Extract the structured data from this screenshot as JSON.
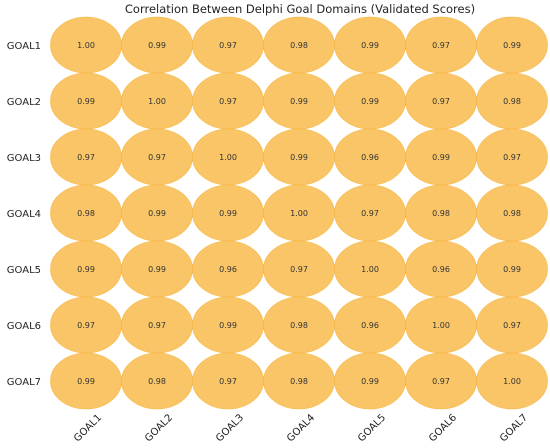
{
  "chart_data": {
    "type": "heatmap",
    "title": "Correlation Between Delphi Goal Domains (Validated Scores)",
    "rows": [
      "GOAL1",
      "GOAL2",
      "GOAL3",
      "GOAL4",
      "GOAL5",
      "GOAL6",
      "GOAL7"
    ],
    "cols": [
      "GOAL1",
      "GOAL2",
      "GOAL3",
      "GOAL4",
      "GOAL5",
      "GOAL6",
      "GOAL7"
    ],
    "values": [
      [
        1.0,
        0.99,
        0.97,
        0.98,
        0.99,
        0.97,
        0.99
      ],
      [
        0.99,
        1.0,
        0.97,
        0.99,
        0.99,
        0.97,
        0.98
      ],
      [
        0.97,
        0.97,
        1.0,
        0.99,
        0.96,
        0.99,
        0.97
      ],
      [
        0.98,
        0.99,
        0.99,
        1.0,
        0.97,
        0.98,
        0.98
      ],
      [
        0.99,
        0.99,
        0.96,
        0.97,
        1.0,
        0.96,
        0.99
      ],
      [
        0.97,
        0.97,
        0.99,
        0.98,
        0.96,
        1.0,
        0.97
      ],
      [
        0.99,
        0.98,
        0.97,
        0.98,
        0.99,
        0.97,
        1.0
      ]
    ],
    "marker_color": "#f8bb4c",
    "marker_opacity": 0.85
  }
}
